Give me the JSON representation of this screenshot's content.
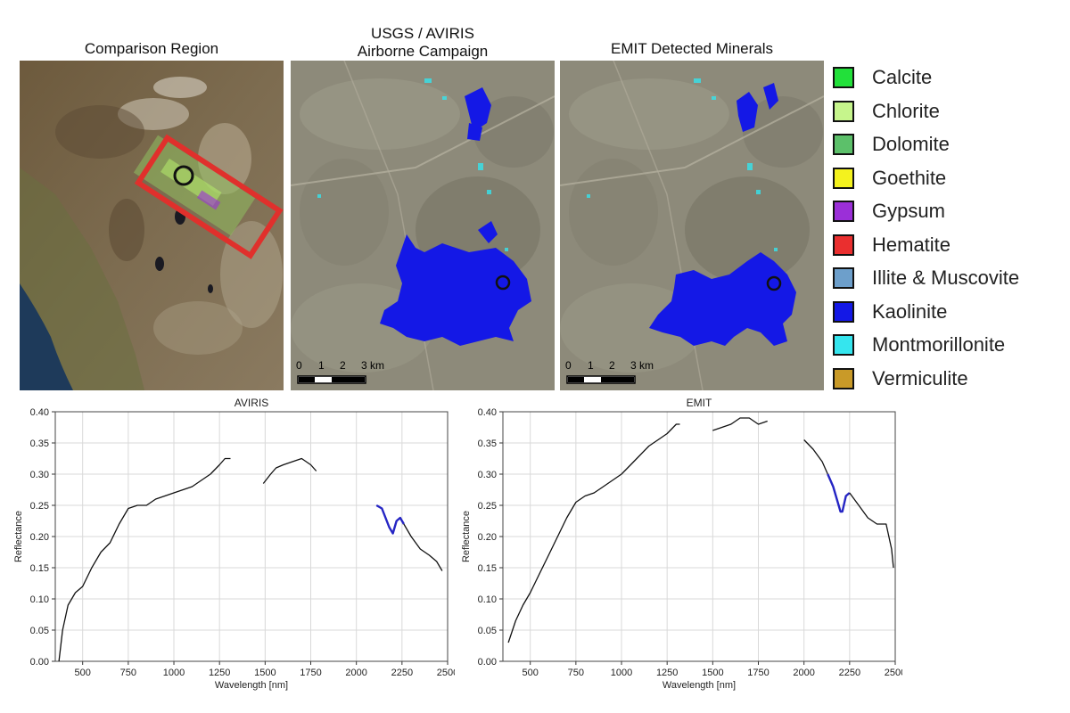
{
  "panels": [
    {
      "title": "Comparison Region"
    },
    {
      "title": "USGS / AVIRIS\nAirborne Campaign"
    },
    {
      "title": "EMIT Detected Minerals"
    }
  ],
  "scalebar": {
    "labels": [
      "0",
      "1",
      "2",
      "3 km"
    ]
  },
  "legend": [
    {
      "label": "Calcite",
      "color": "#22e03a"
    },
    {
      "label": "Chlorite",
      "color": "#c6f58c"
    },
    {
      "label": "Dolomite",
      "color": "#5cc06a"
    },
    {
      "label": "Goethite",
      "color": "#f4f21e"
    },
    {
      "label": "Gypsum",
      "color": "#9b2fd8"
    },
    {
      "label": "Hematite",
      "color": "#ea2f2f"
    },
    {
      "label": "Illite & Muscovite",
      "color": "#6d9fcb"
    },
    {
      "label": "Kaolinite",
      "color": "#1418e6"
    },
    {
      "label": "Montmorillonite",
      "color": "#35e5ee"
    },
    {
      "label": "Vermiculite",
      "color": "#c99a28"
    }
  ],
  "chart_data": [
    {
      "type": "line",
      "title": "AVIRIS",
      "xlabel": "Wavelength [nm]",
      "ylabel": "Reflectance",
      "xlim": [
        350,
        2500
      ],
      "ylim": [
        0,
        0.4
      ],
      "xticks": [
        500,
        750,
        1000,
        1250,
        1500,
        1750,
        2000,
        2250,
        2500
      ],
      "yticks": [
        "0.00",
        "0.05",
        "0.10",
        "0.15",
        "0.20",
        "0.25",
        "0.30",
        "0.35",
        "0.40"
      ],
      "grid": true,
      "segments": [
        {
          "color": "#111111",
          "points": [
            [
              370,
              0.0
            ],
            [
              390,
              0.05
            ],
            [
              420,
              0.09
            ],
            [
              460,
              0.11
            ],
            [
              500,
              0.12
            ],
            [
              550,
              0.15
            ],
            [
              600,
              0.175
            ],
            [
              650,
              0.19
            ],
            [
              700,
              0.22
            ],
            [
              750,
              0.245
            ],
            [
              800,
              0.25
            ],
            [
              850,
              0.25
            ],
            [
              900,
              0.26
            ],
            [
              950,
              0.265
            ],
            [
              1000,
              0.27
            ],
            [
              1050,
              0.275
            ],
            [
              1100,
              0.28
            ],
            [
              1150,
              0.29
            ],
            [
              1200,
              0.3
            ],
            [
              1250,
              0.315
            ],
            [
              1280,
              0.325
            ],
            [
              1310,
              0.325
            ]
          ]
        },
        {
          "color": "#111111",
          "points": [
            [
              1490,
              0.285
            ],
            [
              1530,
              0.3
            ],
            [
              1560,
              0.31
            ],
            [
              1600,
              0.315
            ],
            [
              1650,
              0.32
            ],
            [
              1700,
              0.325
            ],
            [
              1750,
              0.315
            ],
            [
              1780,
              0.305
            ]
          ]
        },
        {
          "color": "#2525c4",
          "points": [
            [
              2110,
              0.25
            ],
            [
              2140,
              0.245
            ],
            [
              2160,
              0.23
            ],
            [
              2180,
              0.215
            ],
            [
              2200,
              0.205
            ],
            [
              2220,
              0.225
            ],
            [
              2240,
              0.23
            ],
            [
              2260,
              0.22
            ]
          ]
        },
        {
          "color": "#111111",
          "points": [
            [
              2260,
              0.22
            ],
            [
              2300,
              0.2
            ],
            [
              2350,
              0.18
            ],
            [
              2400,
              0.17
            ],
            [
              2440,
              0.16
            ],
            [
              2470,
              0.145
            ]
          ]
        }
      ]
    },
    {
      "type": "line",
      "title": "EMIT",
      "xlabel": "Wavelength [nm]",
      "ylabel": "Reflectance",
      "xlim": [
        350,
        2500
      ],
      "ylim": [
        0,
        0.4
      ],
      "xticks": [
        500,
        750,
        1000,
        1250,
        1500,
        1750,
        2000,
        2250,
        2500
      ],
      "yticks": [
        "0.00",
        "0.05",
        "0.10",
        "0.15",
        "0.20",
        "0.25",
        "0.30",
        "0.35",
        "0.40"
      ],
      "grid": true,
      "segments": [
        {
          "color": "#111111",
          "points": [
            [
              380,
              0.03
            ],
            [
              420,
              0.065
            ],
            [
              460,
              0.09
            ],
            [
              500,
              0.11
            ],
            [
              550,
              0.14
            ],
            [
              600,
              0.17
            ],
            [
              650,
              0.2
            ],
            [
              700,
              0.23
            ],
            [
              750,
              0.255
            ],
            [
              800,
              0.265
            ],
            [
              850,
              0.27
            ],
            [
              900,
              0.28
            ],
            [
              950,
              0.29
            ],
            [
              1000,
              0.3
            ],
            [
              1050,
              0.315
            ],
            [
              1100,
              0.33
            ],
            [
              1150,
              0.345
            ],
            [
              1200,
              0.355
            ],
            [
              1250,
              0.365
            ],
            [
              1300,
              0.38
            ],
            [
              1320,
              0.38
            ]
          ]
        },
        {
          "color": "#111111",
          "points": [
            [
              1500,
              0.37
            ],
            [
              1550,
              0.375
            ],
            [
              1600,
              0.38
            ],
            [
              1650,
              0.39
            ],
            [
              1700,
              0.39
            ],
            [
              1750,
              0.38
            ],
            [
              1800,
              0.385
            ]
          ]
        },
        {
          "color": "#111111",
          "points": [
            [
              2000,
              0.355
            ],
            [
              2050,
              0.34
            ],
            [
              2100,
              0.32
            ],
            [
              2130,
              0.3
            ]
          ]
        },
        {
          "color": "#2525c4",
          "points": [
            [
              2130,
              0.3
            ],
            [
              2160,
              0.28
            ],
            [
              2180,
              0.26
            ],
            [
              2200,
              0.24
            ],
            [
              2210,
              0.24
            ],
            [
              2230,
              0.265
            ],
            [
              2250,
              0.27
            ]
          ]
        },
        {
          "color": "#111111",
          "points": [
            [
              2250,
              0.27
            ],
            [
              2300,
              0.25
            ],
            [
              2350,
              0.23
            ],
            [
              2400,
              0.22
            ],
            [
              2450,
              0.22
            ],
            [
              2480,
              0.18
            ],
            [
              2490,
              0.15
            ]
          ]
        }
      ]
    }
  ]
}
